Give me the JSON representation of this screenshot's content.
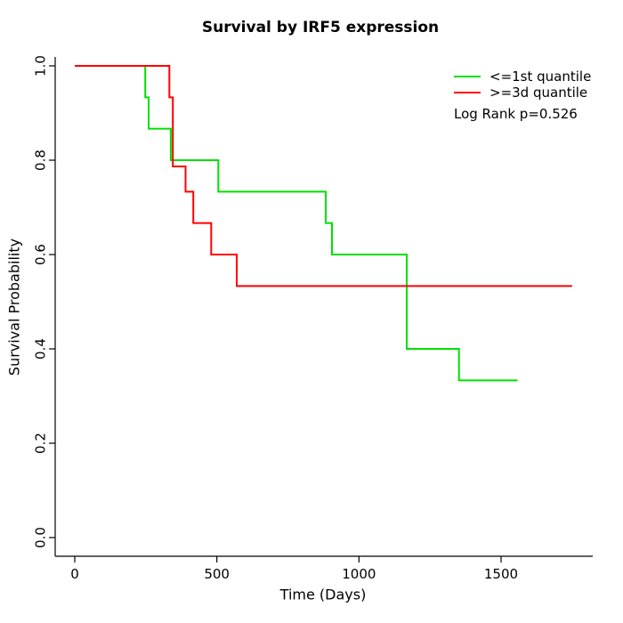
{
  "chart_data": {
    "type": "line",
    "subtype": "kaplan_meier_step",
    "title": "Survival by IRF5 expression",
    "xlabel": "Time (Days)",
    "ylabel": "Survival Probability",
    "xticks": [
      0,
      500,
      1000,
      1500
    ],
    "yticks": [
      "0.0",
      "0.2",
      "0.4",
      "0.6",
      "0.8",
      "1.0"
    ],
    "xlim": [
      -70,
      1815
    ],
    "ylim": [
      -0.04,
      1.02
    ],
    "grid": false,
    "legend_position": "top-right-inside",
    "annotation": "Log Rank p=0.526",
    "log_rank_p": 0.526,
    "legend": [
      {
        "label": "<=1st quantile",
        "color": "#00E000"
      },
      {
        "label": ">=3d quantile",
        "color": "#FF0000"
      }
    ],
    "series": [
      {
        "name": "<=1st quantile",
        "color": "#00E000",
        "steps": [
          [
            0,
            1.0
          ],
          [
            248,
            0.9333
          ],
          [
            260,
            0.8667
          ],
          [
            338,
            0.8
          ],
          [
            505,
            0.7333
          ],
          [
            883,
            0.6667
          ],
          [
            905,
            0.6
          ],
          [
            1168,
            0.4
          ],
          [
            1352,
            0.3333
          ]
        ],
        "end_time": 1558
      },
      {
        "name": ">=3d quantile",
        "color": "#FF0000",
        "steps": [
          [
            0,
            1.0
          ],
          [
            333,
            0.9333
          ],
          [
            345,
            0.7867
          ],
          [
            390,
            0.7333
          ],
          [
            417,
            0.6667
          ],
          [
            480,
            0.6
          ],
          [
            570,
            0.5333
          ]
        ],
        "end_time": 1750
      }
    ]
  }
}
